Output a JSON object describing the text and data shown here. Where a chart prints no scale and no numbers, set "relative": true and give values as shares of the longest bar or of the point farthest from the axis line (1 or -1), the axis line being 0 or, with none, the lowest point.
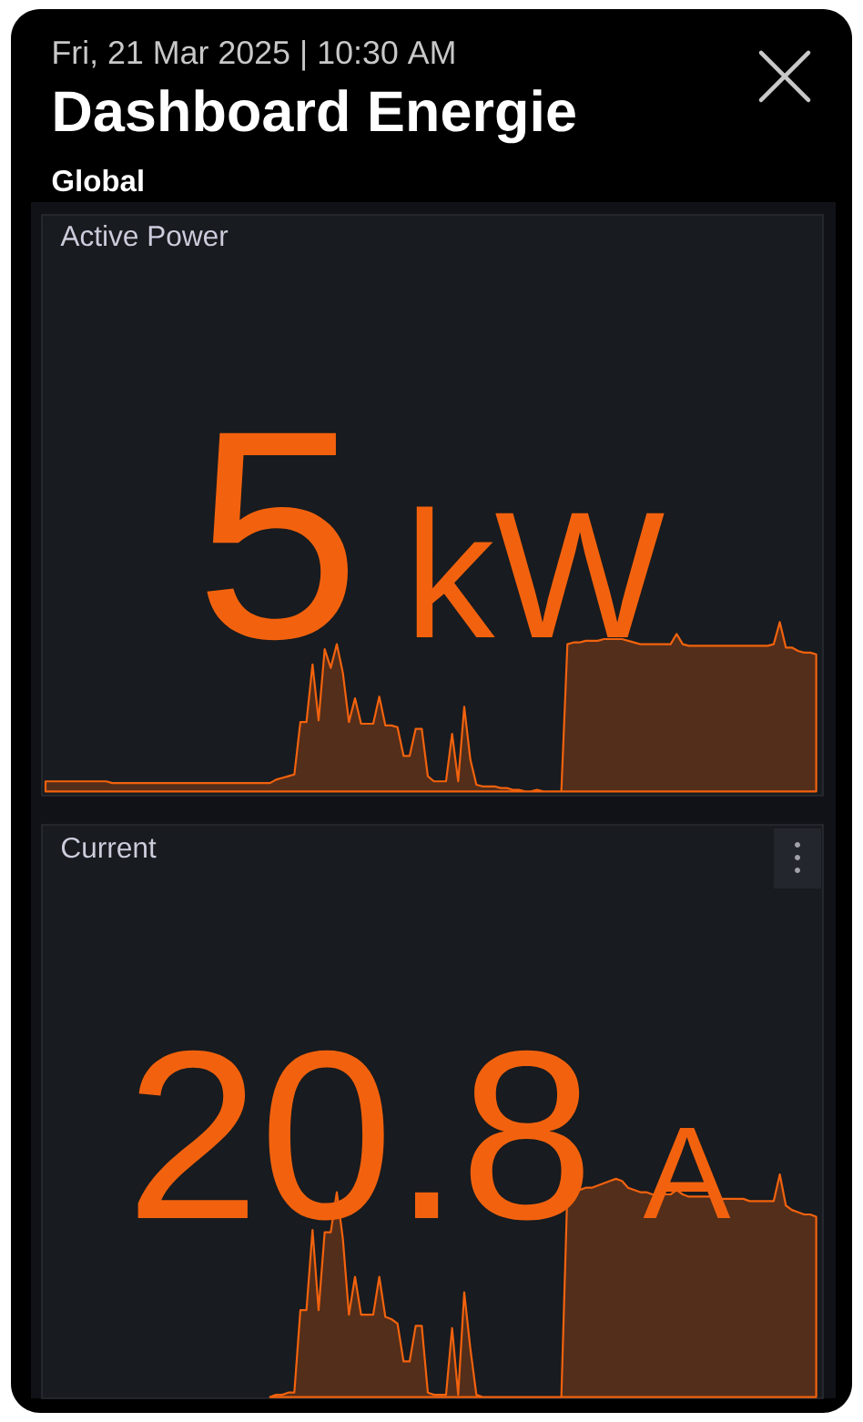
{
  "chart_data": [
    {
      "type": "other",
      "title": "Dashboard Energie",
      "subtitle": "Global",
      "annotations": [
        "Fri, 21 Mar 2025 | 10:30 AM"
      ]
    },
    {
      "type": "area",
      "title": "Active Power",
      "relative": true,
      "color": "#f2620e",
      "annotations": [
        "5",
        "kW"
      ],
      "categories": [
        null,
        null,
        null,
        null,
        null,
        null,
        null,
        null,
        null,
        null,
        null,
        null,
        null,
        null,
        null,
        null,
        null,
        null,
        null,
        null,
        null,
        null,
        null,
        null,
        null,
        null,
        null,
        null,
        null,
        null,
        null,
        null,
        null,
        null,
        null,
        null,
        null,
        null,
        null,
        null,
        null,
        null,
        null,
        null,
        null,
        null,
        null,
        null,
        null,
        null,
        null,
        null,
        null,
        null,
        null,
        null,
        null,
        null,
        null,
        null,
        null,
        null,
        null,
        null,
        null,
        null,
        null,
        null,
        null,
        null,
        null,
        null,
        null,
        null,
        null,
        null,
        null,
        null,
        null,
        null,
        null,
        null,
        null,
        null,
        null,
        null,
        null,
        null,
        null,
        null,
        null,
        null,
        null,
        null,
        null,
        null,
        null,
        null,
        null,
        null,
        null,
        null,
        null,
        null,
        null,
        null,
        null,
        null,
        null,
        null,
        null,
        null,
        null,
        null,
        null,
        null,
        null,
        null,
        null,
        null,
        null,
        null,
        null,
        null,
        null,
        null,
        null,
        null
      ],
      "values": [
        0.06,
        0.06,
        0.06,
        0.06,
        0.06,
        0.06,
        0.06,
        0.06,
        0.06,
        0.06,
        0.06,
        0.05,
        0.05,
        0.05,
        0.05,
        0.05,
        0.05,
        0.05,
        0.05,
        0.05,
        0.05,
        0.05,
        0.05,
        0.05,
        0.05,
        0.05,
        0.05,
        0.05,
        0.05,
        0.05,
        0.05,
        0.05,
        0.05,
        0.05,
        0.05,
        0.05,
        0.05,
        0.05,
        0.07,
        0.08,
        0.09,
        0.1,
        0.41,
        0.41,
        0.75,
        0.42,
        0.84,
        0.73,
        0.87,
        0.7,
        0.41,
        0.55,
        0.4,
        0.4,
        0.4,
        0.56,
        0.39,
        0.39,
        0.38,
        0.21,
        0.21,
        0.37,
        0.37,
        0.09,
        0.06,
        0.06,
        0.06,
        0.34,
        0.06,
        0.5,
        0.19,
        0.04,
        0.03,
        0.03,
        0.03,
        0.02,
        0.02,
        0.01,
        0.01,
        0,
        0,
        0.01,
        0,
        0,
        0,
        0,
        0.87,
        0.88,
        0.88,
        0.89,
        0.89,
        0.89,
        0.9,
        0.9,
        0.9,
        0.9,
        0.89,
        0.88,
        0.87,
        0.87,
        0.87,
        0.87,
        0.87,
        0.87,
        0.93,
        0.87,
        0.86,
        0.86,
        0.86,
        0.86,
        0.86,
        0.86,
        0.86,
        0.86,
        0.86,
        0.86,
        0.86,
        0.86,
        0.86,
        0.86,
        0.87,
        1,
        0.85,
        0.85,
        0.83,
        0.82,
        0.82,
        0.81
      ]
    },
    {
      "type": "area",
      "title": "Current",
      "relative": true,
      "color": "#f2620e",
      "annotations": [
        "20.8",
        "A"
      ],
      "categories": [
        null,
        null,
        null,
        null,
        null,
        null,
        null,
        null,
        null,
        null,
        null,
        null,
        null,
        null,
        null,
        null,
        null,
        null,
        null,
        null,
        null,
        null,
        null,
        null,
        null,
        null,
        null,
        null,
        null,
        null,
        null,
        null,
        null,
        null,
        null,
        null,
        null,
        null,
        null,
        null,
        null,
        null,
        null,
        null,
        null,
        null,
        null,
        null,
        null,
        null,
        null,
        null,
        null,
        null,
        null,
        null,
        null,
        null,
        null,
        null,
        null,
        null,
        null,
        null,
        null,
        null,
        null,
        null,
        null,
        null,
        null,
        null,
        null,
        null,
        null,
        null,
        null,
        null,
        null,
        null,
        null,
        null,
        null,
        null,
        null,
        null,
        null,
        null,
        null,
        null,
        null,
        null,
        null,
        null,
        null,
        null,
        null,
        null,
        null,
        null,
        null,
        null,
        null,
        null,
        null,
        null,
        null,
        null,
        null,
        null,
        null,
        null,
        null,
        null,
        null,
        null,
        null,
        null,
        null,
        null,
        null,
        null,
        null,
        null,
        null,
        null,
        null,
        null
      ],
      "values": [
        null,
        null,
        null,
        null,
        null,
        null,
        null,
        null,
        null,
        null,
        null,
        null,
        null,
        null,
        null,
        null,
        null,
        null,
        null,
        null,
        null,
        null,
        null,
        null,
        null,
        null,
        null,
        null,
        null,
        null,
        null,
        null,
        null,
        null,
        null,
        null,
        null,
        0,
        0.01,
        0.01,
        0.02,
        0.02,
        0.39,
        0.39,
        0.75,
        0.39,
        0.74,
        0.74,
        0.92,
        0.71,
        0.37,
        0.54,
        0.37,
        0.37,
        0.37,
        0.54,
        0.36,
        0.35,
        0.33,
        0.16,
        0.16,
        0.32,
        0.32,
        0.02,
        0.01,
        0.01,
        0.01,
        0.31,
        0.01,
        0.47,
        0.22,
        0.01,
        0,
        0,
        0,
        0,
        0,
        0,
        0,
        0,
        0,
        0,
        0,
        0,
        0,
        0,
        0.93,
        0.93,
        0.93,
        0.94,
        0.94,
        0.95,
        0.96,
        0.97,
        0.98,
        0.97,
        0.94,
        0.93,
        0.92,
        0.92,
        0.91,
        0.91,
        0.91,
        0.91,
        0.93,
        0.91,
        0.9,
        0.9,
        0.9,
        0.9,
        0.9,
        0.89,
        0.89,
        0.89,
        0.89,
        0.89,
        0.88,
        0.88,
        0.88,
        0.88,
        0.88,
        1,
        0.86,
        0.84,
        0.83,
        0.82,
        0.82,
        0.81
      ]
    }
  ]
}
